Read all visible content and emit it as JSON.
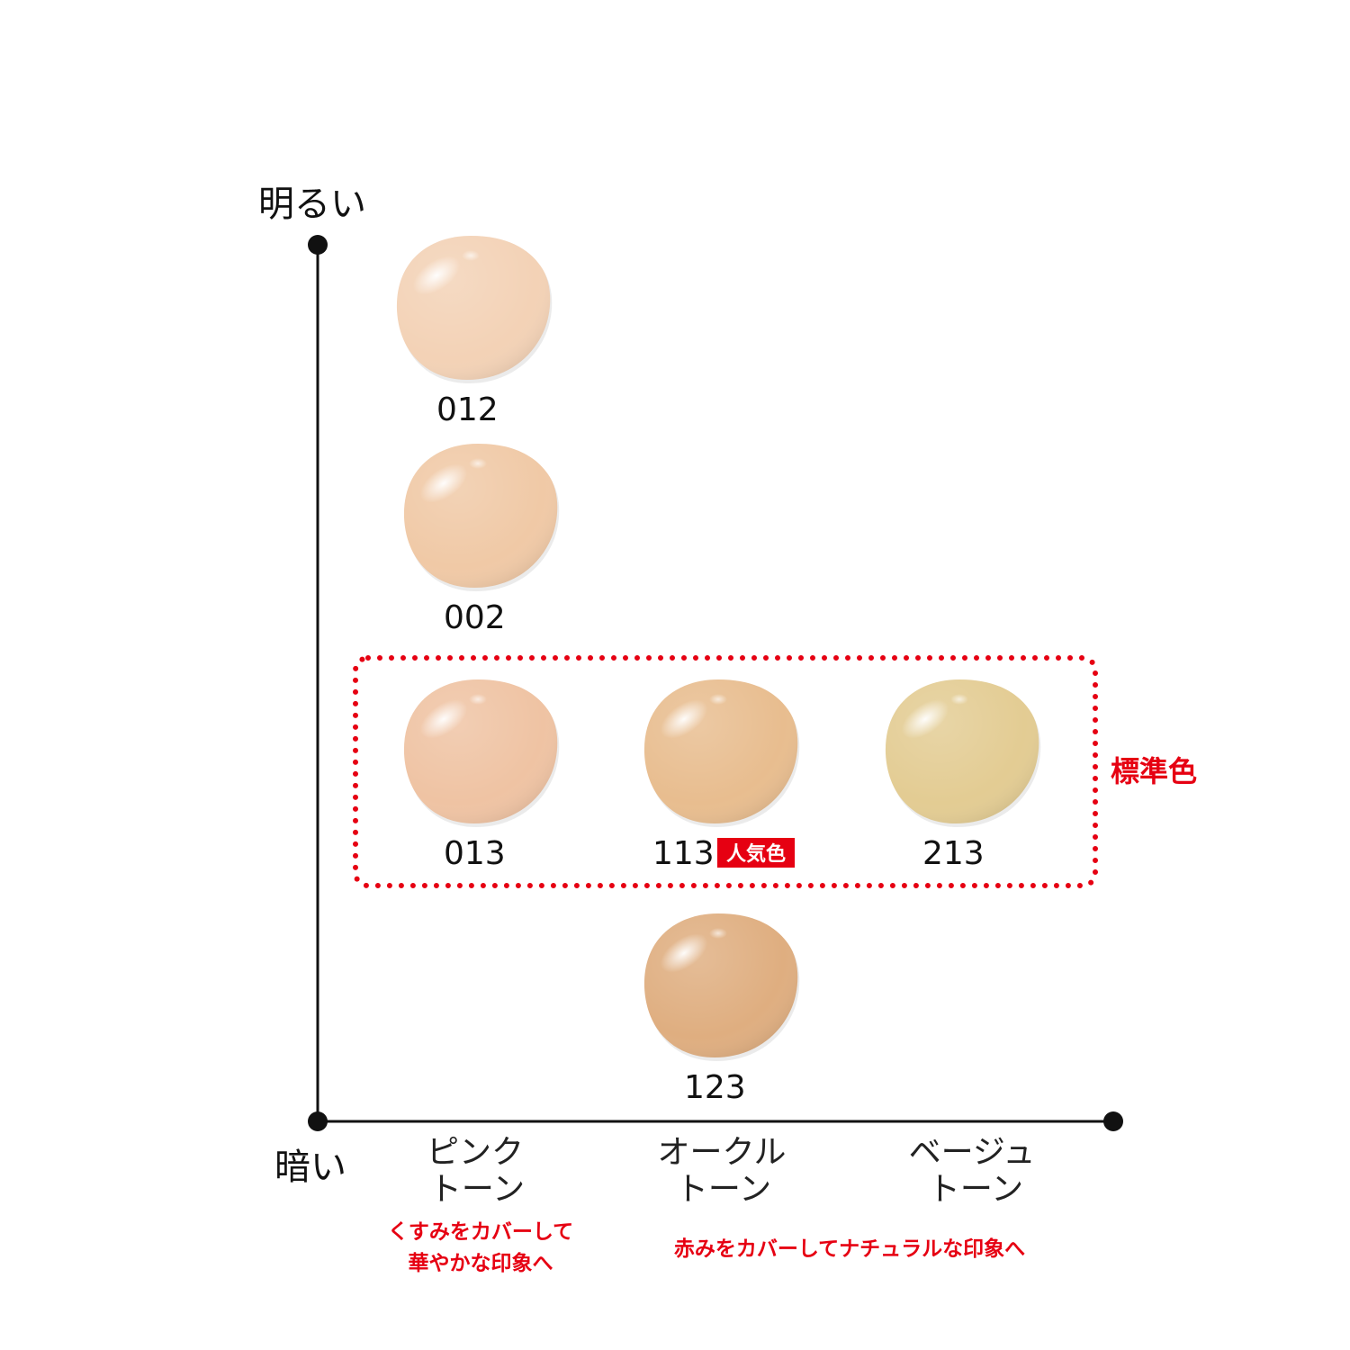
{
  "axes": {
    "y_top_label": "明るい",
    "y_bottom_label": "暗い"
  },
  "tones": [
    {
      "id": "pink",
      "line1": "ピンク",
      "line2": "トーン"
    },
    {
      "id": "ochre",
      "line1": "オークル",
      "line2": "トーン"
    },
    {
      "id": "beige",
      "line1": "ベージュ",
      "line2": "トーン"
    }
  ],
  "notes": {
    "pink_line1": "くすみをカバーして",
    "pink_line2": "華やかな印象へ",
    "ochre_beige": "赤みをカバーしてナチュラルな印象へ"
  },
  "standard": {
    "label": "標準色"
  },
  "popular_badge": "人気色",
  "shades": [
    {
      "code": "012",
      "color": "#f3d2b6",
      "tone": "pink"
    },
    {
      "code": "002",
      "color": "#f0c9a6",
      "tone": "pink"
    },
    {
      "code": "013",
      "color": "#efc3a3",
      "tone": "pink"
    },
    {
      "code": "113",
      "color": "#e8bd8f",
      "tone": "ochre"
    },
    {
      "code": "213",
      "color": "#e3cc93",
      "tone": "beige"
    },
    {
      "code": "123",
      "color": "#dfae80",
      "tone": "ochre"
    }
  ],
  "colors": {
    "accent_red": "#e60012",
    "axis": "#111111",
    "text": "#111111"
  }
}
